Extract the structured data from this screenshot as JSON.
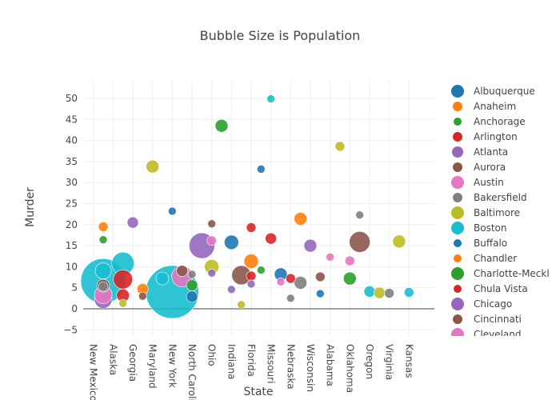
{
  "chart_data": {
    "type": "scatter",
    "title": "Bubble Size is Population",
    "xlabel": "State",
    "ylabel": "Murder",
    "ylim": [
      -6,
      54
    ],
    "xlim": [
      -1,
      34.6
    ],
    "yticks": [
      -5,
      0,
      5,
      10,
      15,
      20,
      25,
      30,
      35,
      40,
      45,
      50
    ],
    "ytick_labels": [
      "−5",
      "0",
      "5",
      "10",
      "15",
      "20",
      "25",
      "30",
      "35",
      "40",
      "45",
      "50"
    ],
    "xtick_labels": [
      "New Mexico",
      "Alaska",
      "Georgia",
      "Maryland",
      "New York",
      "North Carolina",
      "Ohio",
      "Indiana",
      "Florida",
      "Missouri",
      "Nebraska",
      "Wisconsin",
      "Alabama",
      "Oklahoma",
      "Oregon",
      "Virginia",
      "Kansas"
    ],
    "xtick_display": [
      "New Mexico",
      "Alaska",
      "Georgia",
      "Maryland",
      "New York",
      "North Caroli",
      "Ohio",
      "Indiana",
      "Florida",
      "Missouri",
      "Nebraska",
      "Wisconsin",
      "Alabama",
      "Oklahoma",
      "Oregon",
      "Virginia",
      "Kansas"
    ],
    "grid": true,
    "legend": {
      "placement": "right",
      "entries": [
        {
          "name": "Albuquerque",
          "color": "#1f77b4"
        },
        {
          "name": "Anaheim",
          "color": "#ff7f0e"
        },
        {
          "name": "Anchorage",
          "color": "#2ca02c"
        },
        {
          "name": "Arlington",
          "color": "#d62728"
        },
        {
          "name": "Atlanta",
          "color": "#9467bd"
        },
        {
          "name": "Aurora",
          "color": "#8c564b"
        },
        {
          "name": "Austin",
          "color": "#e377c2"
        },
        {
          "name": "Bakersfield",
          "color": "#7f7f7f"
        },
        {
          "name": "Baltimore",
          "color": "#bcbd22"
        },
        {
          "name": "Boston",
          "color": "#17becf"
        },
        {
          "name": "Buffalo",
          "color": "#1f77b4"
        },
        {
          "name": "Chandler",
          "color": "#ff7f0e"
        },
        {
          "name": "Charlotte-Meckl",
          "color": "#2ca02c"
        },
        {
          "name": "Chula Vista",
          "color": "#d62728"
        },
        {
          "name": "Chicago",
          "color": "#9467bd"
        },
        {
          "name": "Cincinnati",
          "color": "#8c564b"
        },
        {
          "name": "Cleveland",
          "color": "#e377c2"
        }
      ]
    },
    "points": [
      {
        "x": 1,
        "y": 6.6,
        "size": 28,
        "color": "#17becf"
      },
      {
        "x": 1,
        "y": 9.0,
        "size": 10,
        "color": "#17becf"
      },
      {
        "x": 1,
        "y": 19.5,
        "size": 6,
        "color": "#ff7f0e"
      },
      {
        "x": 1,
        "y": 16.4,
        "size": 5,
        "color": "#2ca02c"
      },
      {
        "x": 1,
        "y": 2.2,
        "size": 11,
        "color": "#9467bd"
      },
      {
        "x": 1,
        "y": 3.3,
        "size": 11,
        "color": "#e377c2"
      },
      {
        "x": 1,
        "y": 5.5,
        "size": 8,
        "color": "#8c564b"
      },
      {
        "x": 1,
        "y": 5.3,
        "size": 6,
        "color": "#7f7f7f"
      },
      {
        "x": 3,
        "y": 10.8,
        "size": 14,
        "color": "#17becf"
      },
      {
        "x": 3,
        "y": 7.0,
        "size": 12,
        "color": "#d62728"
      },
      {
        "x": 3,
        "y": 3.2,
        "size": 8,
        "color": "#d62728"
      },
      {
        "x": 3,
        "y": 1.3,
        "size": 5,
        "color": "#bcbd22"
      },
      {
        "x": 4,
        "y": 20.5,
        "size": 7,
        "color": "#9467bd"
      },
      {
        "x": 5,
        "y": 4.7,
        "size": 7,
        "color": "#ff7f0e"
      },
      {
        "x": 5,
        "y": 3.0,
        "size": 5,
        "color": "#8c564b"
      },
      {
        "x": 6,
        "y": 33.8,
        "size": 8,
        "color": "#bcbd22"
      },
      {
        "x": 8,
        "y": 23.2,
        "size": 5,
        "color": "#1f77b4"
      },
      {
        "x": 7,
        "y": 7.2,
        "size": 8,
        "color": "#17becf"
      },
      {
        "x": 8,
        "y": 4.0,
        "size": 33,
        "color": "#17becf"
      },
      {
        "x": 9,
        "y": 7.7,
        "size": 13,
        "color": "#e377c2"
      },
      {
        "x": 9,
        "y": 9.0,
        "size": 7,
        "color": "#8c564b"
      },
      {
        "x": 10,
        "y": 8.2,
        "size": 5,
        "color": "#7f7f7f"
      },
      {
        "x": 10,
        "y": 5.6,
        "size": 7,
        "color": "#2ca02c"
      },
      {
        "x": 10,
        "y": 2.9,
        "size": 7,
        "color": "#1f77b4"
      },
      {
        "x": 11,
        "y": 15.0,
        "size": 16,
        "color": "#9467bd"
      },
      {
        "x": 12,
        "y": 16.2,
        "size": 6,
        "color": "#e377c2"
      },
      {
        "x": 12,
        "y": 20.2,
        "size": 5,
        "color": "#8c564b"
      },
      {
        "x": 12,
        "y": 10.0,
        "size": 9,
        "color": "#bcbd22"
      },
      {
        "x": 12,
        "y": 8.5,
        "size": 5,
        "color": "#9467bd"
      },
      {
        "x": 13,
        "y": 43.5,
        "size": 8,
        "color": "#2ca02c"
      },
      {
        "x": 14,
        "y": 15.8,
        "size": 9,
        "color": "#1f77b4"
      },
      {
        "x": 14,
        "y": 4.6,
        "size": 5,
        "color": "#9467bd"
      },
      {
        "x": 15,
        "y": 8.0,
        "size": 12,
        "color": "#8c564b"
      },
      {
        "x": 15,
        "y": 1.0,
        "size": 5,
        "color": "#bcbd22"
      },
      {
        "x": 16,
        "y": 19.3,
        "size": 6,
        "color": "#d62728"
      },
      {
        "x": 16,
        "y": 11.3,
        "size": 9,
        "color": "#ff7f0e"
      },
      {
        "x": 16,
        "y": 7.8,
        "size": 6,
        "color": "#d62728"
      },
      {
        "x": 16,
        "y": 5.9,
        "size": 5,
        "color": "#9467bd"
      },
      {
        "x": 17,
        "y": 33.2,
        "size": 5,
        "color": "#1f77b4"
      },
      {
        "x": 17,
        "y": 9.2,
        "size": 5,
        "color": "#2ca02c"
      },
      {
        "x": 18,
        "y": 49.9,
        "size": 5,
        "color": "#17becf"
      },
      {
        "x": 18,
        "y": 16.7,
        "size": 7,
        "color": "#d62728"
      },
      {
        "x": 19,
        "y": 8.2,
        "size": 8,
        "color": "#1f77b4"
      },
      {
        "x": 19,
        "y": 6.4,
        "size": 5,
        "color": "#e377c2"
      },
      {
        "x": 20,
        "y": 7.2,
        "size": 6,
        "color": "#d62728"
      },
      {
        "x": 20,
        "y": 2.5,
        "size": 5,
        "color": "#7f7f7f"
      },
      {
        "x": 21,
        "y": 21.4,
        "size": 8,
        "color": "#ff7f0e"
      },
      {
        "x": 21,
        "y": 6.2,
        "size": 8,
        "color": "#7f7f7f"
      },
      {
        "x": 22,
        "y": 15.0,
        "size": 8,
        "color": "#9467bd"
      },
      {
        "x": 23,
        "y": 7.6,
        "size": 6,
        "color": "#8c564b"
      },
      {
        "x": 23,
        "y": 3.6,
        "size": 5,
        "color": "#1f77b4"
      },
      {
        "x": 24,
        "y": 12.3,
        "size": 5,
        "color": "#e377c2"
      },
      {
        "x": 25,
        "y": 38.6,
        "size": 6,
        "color": "#bcbd22"
      },
      {
        "x": 26,
        "y": 11.4,
        "size": 6,
        "color": "#e377c2"
      },
      {
        "x": 26,
        "y": 7.2,
        "size": 8,
        "color": "#2ca02c"
      },
      {
        "x": 27,
        "y": 22.3,
        "size": 5,
        "color": "#7f7f7f"
      },
      {
        "x": 27,
        "y": 15.9,
        "size": 13,
        "color": "#8c564b"
      },
      {
        "x": 28,
        "y": 4.1,
        "size": 7,
        "color": "#17becf"
      },
      {
        "x": 29,
        "y": 3.8,
        "size": 7,
        "color": "#bcbd22"
      },
      {
        "x": 30,
        "y": 3.7,
        "size": 6,
        "color": "#7f7f7f"
      },
      {
        "x": 31,
        "y": 16.0,
        "size": 8,
        "color": "#bcbd22"
      },
      {
        "x": 32,
        "y": 3.9,
        "size": 6,
        "color": "#17becf"
      }
    ]
  }
}
